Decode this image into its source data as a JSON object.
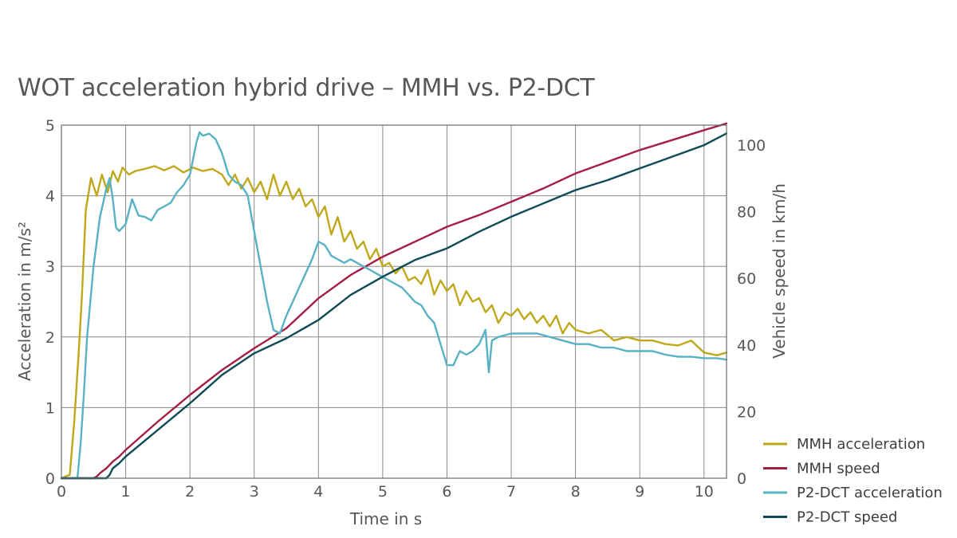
{
  "chart_data": {
    "type": "line",
    "title": "WOT acceleration hybrid drive – MMH vs. P2-DCT",
    "xlabel": "Time in s",
    "ylabel": "Acceleration in m/s²",
    "y2label": "Vehicle speed in km/h",
    "xlim": [
      0,
      10.35
    ],
    "ylim": [
      0,
      5
    ],
    "y2lim": [
      0,
      106
    ],
    "x_ticks": [
      "0",
      "1",
      "2",
      "3",
      "4",
      "5",
      "6",
      "7",
      "8",
      "9",
      "10"
    ],
    "y_ticks": [
      "0",
      "1",
      "2",
      "3",
      "4",
      "5"
    ],
    "y2_ticks": [
      "0",
      "20",
      "40",
      "60",
      "80",
      "100"
    ],
    "grid": true,
    "legend_position": "bottom-right",
    "series": [
      {
        "name": "MMH acceleration",
        "axis": "left",
        "color": "#bfa91a",
        "x": [
          0,
          0.13,
          0.2,
          0.27,
          0.32,
          0.38,
          0.46,
          0.55,
          0.63,
          0.72,
          0.8,
          0.88,
          0.95,
          1.05,
          1.15,
          1.3,
          1.45,
          1.6,
          1.75,
          1.9,
          2.05,
          2.2,
          2.35,
          2.5,
          2.6,
          2.7,
          2.8,
          2.9,
          3.0,
          3.1,
          3.2,
          3.3,
          3.4,
          3.5,
          3.6,
          3.7,
          3.8,
          3.9,
          4.0,
          4.1,
          4.2,
          4.3,
          4.4,
          4.5,
          4.6,
          4.7,
          4.8,
          4.9,
          5.0,
          5.1,
          5.2,
          5.3,
          5.4,
          5.5,
          5.6,
          5.7,
          5.8,
          5.9,
          6.0,
          6.1,
          6.2,
          6.3,
          6.4,
          6.5,
          6.6,
          6.7,
          6.8,
          6.9,
          7.0,
          7.1,
          7.2,
          7.3,
          7.4,
          7.5,
          7.6,
          7.7,
          7.8,
          7.9,
          8.0,
          8.2,
          8.4,
          8.6,
          8.8,
          9.0,
          9.2,
          9.4,
          9.6,
          9.8,
          10.0,
          10.2,
          10.35
        ],
        "values": [
          0,
          0.05,
          0.8,
          1.8,
          2.6,
          3.8,
          4.25,
          4.0,
          4.3,
          4.05,
          4.35,
          4.2,
          4.4,
          4.3,
          4.35,
          4.38,
          4.42,
          4.36,
          4.42,
          4.33,
          4.4,
          4.35,
          4.38,
          4.3,
          4.15,
          4.3,
          4.1,
          4.25,
          4.05,
          4.2,
          3.95,
          4.3,
          4.0,
          4.2,
          3.95,
          4.1,
          3.85,
          3.95,
          3.7,
          3.85,
          3.45,
          3.7,
          3.35,
          3.5,
          3.25,
          3.35,
          3.1,
          3.25,
          3.0,
          3.05,
          2.9,
          3.0,
          2.8,
          2.85,
          2.75,
          2.95,
          2.6,
          2.8,
          2.65,
          2.75,
          2.45,
          2.65,
          2.5,
          2.55,
          2.35,
          2.45,
          2.2,
          2.35,
          2.3,
          2.4,
          2.25,
          2.35,
          2.2,
          2.3,
          2.15,
          2.3,
          2.05,
          2.2,
          2.1,
          2.05,
          2.1,
          1.95,
          2.0,
          1.95,
          1.95,
          1.9,
          1.88,
          1.95,
          1.78,
          1.74,
          1.78
        ]
      },
      {
        "name": "MMH speed",
        "axis": "right",
        "color": "#a51f45",
        "x": [
          0,
          0.5,
          0.55,
          0.6,
          0.7,
          0.8,
          0.9,
          1.0,
          1.5,
          2.0,
          2.5,
          3.0,
          3.5,
          4.0,
          4.5,
          5.0,
          5.5,
          6.0,
          6.5,
          7.0,
          7.5,
          8.0,
          8.5,
          9.0,
          9.5,
          10.0,
          10.35
        ],
        "values": [
          0,
          0,
          0.5,
          1.5,
          3,
          5,
          6.5,
          8.5,
          17,
          25,
          32.5,
          39,
          45,
          54,
          61,
          66.5,
          71,
          75.5,
          79,
          83,
          87,
          91.5,
          95,
          98.5,
          101.5,
          104.5,
          106.5
        ]
      },
      {
        "name": "P2-DCT acceleration",
        "axis": "left",
        "color": "#58b2c4",
        "x": [
          0,
          0.25,
          0.3,
          0.35,
          0.4,
          0.5,
          0.6,
          0.7,
          0.75,
          0.8,
          0.85,
          0.9,
          1.0,
          1.1,
          1.2,
          1.3,
          1.4,
          1.5,
          1.6,
          1.7,
          1.8,
          1.9,
          2.0,
          2.1,
          2.15,
          2.2,
          2.3,
          2.4,
          2.5,
          2.6,
          2.7,
          2.8,
          2.9,
          3.0,
          3.1,
          3.2,
          3.3,
          3.4,
          3.5,
          3.6,
          3.7,
          3.8,
          3.9,
          4.0,
          4.1,
          4.2,
          4.3,
          4.4,
          4.5,
          4.6,
          4.7,
          4.8,
          4.9,
          5.0,
          5.1,
          5.2,
          5.3,
          5.4,
          5.5,
          5.6,
          5.7,
          5.8,
          5.9,
          6.0,
          6.1,
          6.2,
          6.3,
          6.4,
          6.5,
          6.6,
          6.65,
          6.7,
          6.8,
          7.0,
          7.2,
          7.4,
          7.6,
          7.8,
          8.0,
          8.2,
          8.4,
          8.6,
          8.8,
          9.0,
          9.2,
          9.4,
          9.6,
          9.8,
          10.0,
          10.2,
          10.35
        ],
        "values": [
          0,
          0,
          0.5,
          1.2,
          2.0,
          3.0,
          3.7,
          4.1,
          4.25,
          3.95,
          3.55,
          3.5,
          3.6,
          3.95,
          3.72,
          3.7,
          3.65,
          3.8,
          3.85,
          3.9,
          4.05,
          4.15,
          4.3,
          4.75,
          4.9,
          4.85,
          4.88,
          4.8,
          4.6,
          4.3,
          4.2,
          4.15,
          4.0,
          3.5,
          3.0,
          2.5,
          2.1,
          2.05,
          2.3,
          2.5,
          2.7,
          2.9,
          3.1,
          3.35,
          3.3,
          3.15,
          3.1,
          3.05,
          3.1,
          3.05,
          3.0,
          2.95,
          2.9,
          2.85,
          2.8,
          2.75,
          2.7,
          2.6,
          2.5,
          2.45,
          2.3,
          2.2,
          1.9,
          1.6,
          1.6,
          1.8,
          1.75,
          1.8,
          1.9,
          2.1,
          1.5,
          1.95,
          2.0,
          2.05,
          2.05,
          2.05,
          2.0,
          1.95,
          1.9,
          1.9,
          1.85,
          1.85,
          1.8,
          1.8,
          1.8,
          1.75,
          1.72,
          1.72,
          1.7,
          1.7,
          1.68
        ]
      },
      {
        "name": "P2-DCT speed",
        "axis": "right",
        "color": "#0e4b57",
        "x": [
          0,
          0.7,
          0.75,
          0.8,
          0.9,
          1.0,
          1.5,
          2.0,
          2.5,
          3.0,
          3.5,
          4.0,
          4.5,
          5.0,
          5.5,
          6.0,
          6.5,
          7.0,
          7.5,
          8.0,
          8.5,
          9.0,
          9.5,
          10.0,
          10.2,
          10.35
        ],
        "values": [
          0,
          0,
          1,
          3,
          4.5,
          6.5,
          14.5,
          22.5,
          31,
          37.5,
          42,
          47.5,
          55,
          60.5,
          65.5,
          69,
          74,
          78.5,
          82.5,
          86.5,
          89.5,
          93,
          96.5,
          100,
          102,
          103.5
        ]
      }
    ]
  }
}
